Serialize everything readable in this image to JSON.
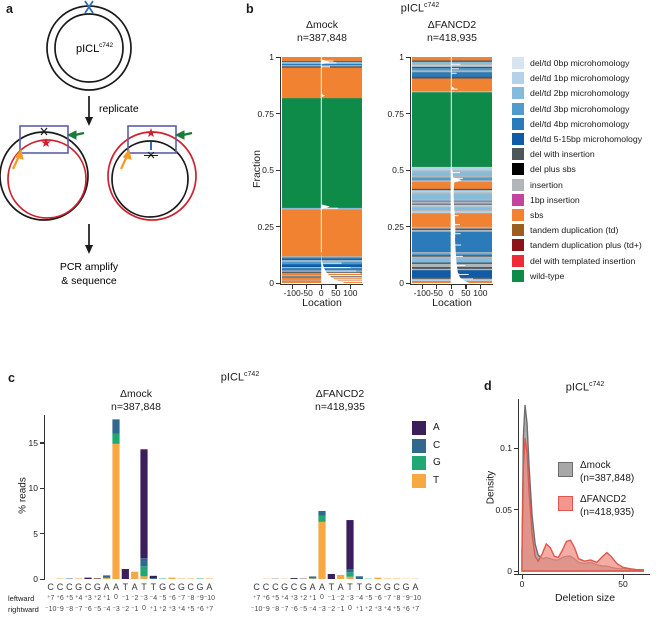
{
  "panels": {
    "a": "a",
    "b": "b",
    "c": "c",
    "d": "d"
  },
  "panel_a": {
    "plasmid_name_base": "pICL",
    "plasmid_name_sup": "c742",
    "step1": "replicate",
    "step2_line1": "PCR amplify",
    "step2_line2": "& sequence"
  },
  "panel_b": {
    "title_base": "pICL",
    "title_sup": "c742",
    "ylabel": "Fraction",
    "xlabel": "Location",
    "yticks": [
      {
        "v": 1,
        "label": "1"
      },
      {
        "v": 0.75,
        "label": "0.75"
      },
      {
        "v": 0.5,
        "label": "0.5"
      },
      {
        "v": 0.25,
        "label": "0.25"
      },
      {
        "v": 0,
        "label": "0"
      }
    ],
    "xticks": [
      {
        "v": -100,
        "label": "-100"
      },
      {
        "v": -50,
        "label": "-50"
      },
      {
        "v": 0,
        "label": "0"
      },
      {
        "v": 50,
        "label": "50"
      },
      {
        "v": 100,
        "label": "100"
      }
    ],
    "subplots": [
      {
        "condition": "Δmock",
        "n_label": "n=387,848"
      },
      {
        "condition": "ΔFANCD2",
        "n_label": "n=418,935"
      }
    ],
    "legend": [
      {
        "label": "del/td 0bp microhomology",
        "key": "mh0"
      },
      {
        "label": "del/td 1bp microhomology",
        "key": "mh1"
      },
      {
        "label": "del/td 2bp microhomology",
        "key": "mh2"
      },
      {
        "label": "del/td 3bp microhomology",
        "key": "mh3"
      },
      {
        "label": "del/td 4bp microhomology",
        "key": "mh4"
      },
      {
        "label": "del/td 5-15bp microhomology",
        "key": "mh5"
      },
      {
        "label": "del with insertion",
        "key": "delins"
      },
      {
        "label": "del plus sbs",
        "key": "delsbs"
      },
      {
        "label": "insertion",
        "key": "ins"
      },
      {
        "label": "1bp insertion",
        "key": "ins1"
      },
      {
        "label": "sbs",
        "key": "sbs"
      },
      {
        "label": "tandem duplication (td)",
        "key": "td"
      },
      {
        "label": "tandem duplication plus (td+)",
        "key": "tdp"
      },
      {
        "label": "del with templated insertion",
        "key": "delti"
      },
      {
        "label": "wild-type",
        "key": "wt"
      }
    ]
  },
  "panel_c": {
    "title_base": "pICL",
    "title_sup": "c742",
    "ylabel": "% reads",
    "yticks": [
      {
        "v": 0,
        "label": "0"
      },
      {
        "v": 5,
        "label": "5"
      },
      {
        "v": 10,
        "label": "10"
      },
      {
        "v": 15,
        "label": "15"
      }
    ],
    "subplots": [
      {
        "condition": "Δmock",
        "n_label": "n=387,848"
      },
      {
        "condition": "ΔFANCD2",
        "n_label": "n=418,935"
      }
    ],
    "legend": [
      {
        "label": "A",
        "color": "#3b1e5c"
      },
      {
        "label": "C",
        "color": "#31688e"
      },
      {
        "label": "G",
        "color": "#1fa875"
      },
      {
        "label": "T",
        "color": "#f7a843"
      }
    ],
    "row_labels": {
      "left": "leftward",
      "right": "rightward"
    },
    "nucleotides": [
      "C",
      "C",
      "C",
      "G",
      "C",
      "G",
      "A",
      "A",
      "T",
      "A",
      "T",
      "T",
      "G",
      "C",
      "G",
      "C",
      "G",
      "A"
    ],
    "leftward": [
      "⁺7",
      "⁺6",
      "⁺5",
      "⁺4",
      "⁺3",
      "⁺2",
      "⁺1",
      "0",
      "⁻1",
      "⁻2",
      "⁻3",
      "⁻4",
      "⁻5",
      "⁻6",
      "⁻7",
      "⁻8",
      "⁻9",
      "⁻10"
    ],
    "rightward": [
      "⁻10",
      "⁻9",
      "⁻8",
      "⁻7",
      "⁻6",
      "⁻5",
      "⁻4",
      "⁻3",
      "⁻2",
      "⁻1",
      "0",
      "⁺1",
      "⁺2",
      "⁺3",
      "⁺4",
      "⁺5",
      "⁺6",
      "⁺7"
    ]
  },
  "panel_d": {
    "title_base": "pICL",
    "title_sup": "c742",
    "ylabel": "Density",
    "xlabel": "Deletion size",
    "yticks": [
      {
        "v": 0,
        "label": "0"
      },
      {
        "v": 0.05,
        "label": "0.05"
      },
      {
        "v": 0.1,
        "label": "0.1"
      }
    ],
    "xticks": [
      {
        "v": 0,
        "label": "0"
      },
      {
        "v": 50,
        "label": "50"
      }
    ],
    "legend": [
      {
        "label": "Δmock",
        "n_label": "(n=387,848)",
        "fill": "#a8a8a8",
        "stroke": "#6e6e6e"
      },
      {
        "label": "ΔFANCD2",
        "n_label": "(n=418,935)",
        "fill": "#f4968e",
        "stroke": "#e0574e"
      }
    ]
  },
  "palette": {
    "mh0": "#d7e5f1",
    "mh1": "#b3d1e8",
    "mh2": "#83bbde",
    "mh3": "#4f9bcd",
    "mh4": "#2b7bba",
    "mh5": "#0f5ba6",
    "delins": "#4e565c",
    "delsbs": "#000000",
    "ins": "#b3b6b9",
    "ins1": "#c2459d",
    "sbs": "#f08232",
    "td": "#9c5e20",
    "tdp": "#8c1418",
    "delti": "#ee2c38",
    "wt": "#0f8b49"
  },
  "chart_data": [
    {
      "id": "b-mock",
      "type": "area",
      "subtype": "stacked-fraction-by-location",
      "title": "Δmock",
      "n": 387848,
      "xlabel": "Location",
      "ylabel": "Fraction",
      "xlim": [
        -135,
        140
      ],
      "ylim": [
        0,
        1
      ],
      "segments": [
        [
          0.012,
          "sbs"
        ],
        [
          0.004,
          "ins"
        ],
        [
          0.01,
          "sbs"
        ],
        [
          0.004,
          "delins"
        ],
        [
          0.006,
          "ins"
        ],
        [
          0.01,
          "sbs"
        ],
        [
          0.005,
          "delins"
        ],
        [
          0.006,
          "ins"
        ],
        [
          0.01,
          "mh4"
        ],
        [
          0.005,
          "ins"
        ],
        [
          0.012,
          "mh5"
        ],
        [
          0.012,
          "mh3"
        ],
        [
          0.006,
          "mh1"
        ],
        [
          0.006,
          "delins"
        ],
        [
          0.006,
          "mh4"
        ],
        [
          0.006,
          "ins"
        ],
        [
          0.016,
          "sbs"
        ],
        [
          0.19,
          "sbs"
        ],
        [
          0.004,
          "ins"
        ],
        [
          0.004,
          "mh2"
        ],
        [
          0.003,
          "delins"
        ],
        [
          0.482,
          "wt"
        ],
        [
          0.135,
          "sbs"
        ],
        [
          0.006,
          "delins"
        ],
        [
          0.005,
          "ins"
        ],
        [
          0.006,
          "mh4"
        ],
        [
          0.004,
          "ins"
        ],
        [
          0.005,
          "mh2"
        ],
        [
          0.004,
          "delins"
        ],
        [
          0.016,
          "sbs"
        ]
      ],
      "wedges": [
        [
          [
            0,
            0.348
          ],
          [
            30,
            0.338
          ],
          [
            0,
            0.326
          ]
        ],
        [
          [
            0,
            0.136
          ],
          [
            2,
            0.1
          ],
          [
            6,
            0.08
          ],
          [
            10,
            0.065
          ],
          [
            16,
            0.05
          ],
          [
            24,
            0.038
          ],
          [
            34,
            0.026
          ],
          [
            48,
            0.015
          ],
          [
            62,
            0.007
          ],
          [
            78,
            0.002
          ],
          [
            78,
            0
          ],
          [
            0,
            0
          ]
        ],
        [
          [
            0,
            0.99
          ],
          [
            16,
            0.984
          ],
          [
            28,
            0.977
          ],
          [
            12,
            0.971
          ],
          [
            0,
            0.969
          ]
        ],
        [
          [
            0,
            0.837
          ],
          [
            13,
            0.829
          ],
          [
            0,
            0.821
          ]
        ]
      ],
      "streaks": [
        [
          0.333,
          58
        ],
        [
          0.09,
          70
        ],
        [
          0.07,
          100
        ],
        [
          0.055,
          120
        ],
        [
          0.045,
          135
        ],
        [
          0.035,
          138
        ],
        [
          0.025,
          140
        ],
        [
          0.016,
          140
        ],
        [
          0.008,
          140
        ],
        [
          0.976,
          52
        ],
        [
          0.984,
          42
        ],
        [
          0.958,
          30
        ]
      ],
      "vline": [
        0.136,
        1.0
      ]
    },
    {
      "id": "b-fancd2",
      "type": "area",
      "subtype": "stacked-fraction-by-location",
      "title": "ΔFANCD2",
      "n": 418935,
      "xlabel": "Location",
      "ylabel": "Fraction",
      "xlim": [
        -135,
        140
      ],
      "ylim": [
        0,
        1
      ],
      "segments": [
        [
          0.01,
          "sbs"
        ],
        [
          0.006,
          "mh1"
        ],
        [
          0.004,
          "ins"
        ],
        [
          0.008,
          "delins"
        ],
        [
          0.03,
          "mh5"
        ],
        [
          0.006,
          "ins"
        ],
        [
          0.008,
          "delins"
        ],
        [
          0.014,
          "ins"
        ],
        [
          0.006,
          "delins"
        ],
        [
          0.018,
          "mh2"
        ],
        [
          0.008,
          "ins"
        ],
        [
          0.006,
          "delins"
        ],
        [
          0.008,
          "mh3"
        ],
        [
          0.006,
          "ins"
        ],
        [
          0.09,
          "mh4"
        ],
        [
          0.008,
          "ins"
        ],
        [
          0.006,
          "delins"
        ],
        [
          0.008,
          "ins"
        ],
        [
          0.06,
          "sbs"
        ],
        [
          0.01,
          "mh1"
        ],
        [
          0.006,
          "ins"
        ],
        [
          0.008,
          "mh2"
        ],
        [
          0.006,
          "ins"
        ],
        [
          0.008,
          "mh1"
        ],
        [
          0.004,
          "delins"
        ],
        [
          0.008,
          "ins"
        ],
        [
          0.006,
          "mh3"
        ],
        [
          0.008,
          "ins"
        ],
        [
          0.02,
          "mh2"
        ],
        [
          0.008,
          "ins"
        ],
        [
          0.01,
          "mh1"
        ],
        [
          0.006,
          "delins"
        ],
        [
          0.03,
          "sbs"
        ],
        [
          0.008,
          "ins"
        ],
        [
          0.012,
          "mh3"
        ],
        [
          0.008,
          "ins"
        ],
        [
          0.015,
          "mh2"
        ],
        [
          0.008,
          "ins"
        ],
        [
          0.016,
          "mh1"
        ],
        [
          0.33,
          "wt"
        ],
        [
          0.006,
          "ins"
        ],
        [
          0.055,
          "sbs"
        ],
        [
          0.008,
          "delins"
        ],
        [
          0.02,
          "mh4"
        ],
        [
          0.008,
          "ins"
        ],
        [
          0.01,
          "mh3"
        ],
        [
          0.006,
          "delins"
        ],
        [
          0.008,
          "mh1"
        ],
        [
          0.006,
          "ins"
        ],
        [
          0.008,
          "mh2"
        ],
        [
          0.006,
          "delins"
        ],
        [
          0.014,
          "sbs"
        ]
      ],
      "wedges": [
        [
          [
            -2,
            0.505
          ],
          [
            -2,
            0
          ],
          [
            62,
            0
          ],
          [
            45,
            0.01
          ],
          [
            30,
            0.025
          ],
          [
            22,
            0.05
          ],
          [
            18,
            0.09
          ],
          [
            15,
            0.14
          ],
          [
            13,
            0.19
          ],
          [
            14,
            0.24
          ],
          [
            12,
            0.3
          ],
          [
            9,
            0.35
          ],
          [
            8,
            0.4
          ],
          [
            10,
            0.44
          ],
          [
            6,
            0.47
          ],
          [
            4,
            0.5
          ]
        ],
        [
          [
            0,
            0.47
          ],
          [
            36,
            0.455
          ],
          [
            0,
            0.44
          ]
        ],
        [
          [
            0,
            0.872
          ],
          [
            11,
            0.862
          ],
          [
            0,
            0.852
          ]
        ]
      ],
      "streaks": [
        [
          0.49,
          30
        ],
        [
          0.465,
          40
        ],
        [
          0.3,
          26
        ],
        [
          0.26,
          30
        ],
        [
          0.22,
          32
        ],
        [
          0.17,
          34
        ],
        [
          0.12,
          40
        ],
        [
          0.08,
          48
        ],
        [
          0.04,
          60
        ],
        [
          0.02,
          75
        ],
        [
          0.95,
          26
        ],
        [
          0.97,
          32
        ],
        [
          0.86,
          22
        ],
        [
          0.93,
          18
        ]
      ],
      "vline": [
        0.505,
        1.0
      ]
    },
    {
      "id": "c-mock",
      "type": "bar",
      "stacked": true,
      "title": "Δmock",
      "n": 387848,
      "ylabel": "% reads",
      "ylim": [
        0,
        18
      ],
      "stack_order": [
        "T",
        "G",
        "C",
        "A"
      ],
      "categories": [
        "C",
        "C",
        "C",
        "G",
        "C",
        "G",
        "A",
        "A",
        "T",
        "A",
        "T",
        "T",
        "G",
        "C",
        "G",
        "C",
        "G",
        "A"
      ],
      "series": {
        "T": [
          0,
          0.05,
          0,
          0.05,
          0,
          0.05,
          0.1,
          14.9,
          0,
          0.8,
          0.3,
          0,
          0,
          0.15,
          0.05,
          0.05,
          0,
          0.05
        ],
        "G": [
          0,
          0,
          0,
          0,
          0,
          0,
          0.05,
          1.1,
          0,
          0,
          1.1,
          0,
          0.05,
          0,
          0,
          0,
          0.05,
          0
        ],
        "C": [
          0,
          0,
          0.05,
          0,
          0,
          0,
          0.25,
          1.6,
          0,
          0,
          0.9,
          0.1,
          0,
          0,
          0,
          0,
          0,
          0
        ],
        "A": [
          0,
          0,
          0,
          0,
          0.15,
          0.05,
          0,
          0,
          1.1,
          0,
          12.0,
          0.25,
          0,
          0,
          0,
          0,
          0,
          0
        ]
      }
    },
    {
      "id": "c-fancd2",
      "type": "bar",
      "stacked": true,
      "title": "ΔFANCD2",
      "n": 418935,
      "ylabel": "% reads",
      "ylim": [
        0,
        18
      ],
      "stack_order": [
        "T",
        "G",
        "C",
        "A"
      ],
      "categories": [
        "C",
        "C",
        "C",
        "G",
        "C",
        "G",
        "A",
        "A",
        "T",
        "A",
        "T",
        "T",
        "G",
        "C",
        "G",
        "C",
        "G",
        "A"
      ],
      "series": {
        "T": [
          0,
          0.03,
          0,
          0.03,
          0,
          0.03,
          0.05,
          6.3,
          0,
          0.45,
          0.25,
          0,
          0,
          0.15,
          0.05,
          0.05,
          0.03,
          0.03
        ],
        "G": [
          0,
          0,
          0,
          0,
          0,
          0,
          0.03,
          0.7,
          0,
          0,
          0.5,
          0,
          0.03,
          0,
          0,
          0,
          0,
          0
        ],
        "C": [
          0,
          0,
          0.03,
          0,
          0,
          0,
          0.2,
          0.5,
          0,
          0,
          0.35,
          0.3,
          0,
          0,
          0,
          0,
          0,
          0
        ],
        "A": [
          0,
          0,
          0,
          0,
          0.1,
          0.03,
          0,
          0,
          0.55,
          0,
          5.4,
          0,
          0,
          0,
          0,
          0,
          0,
          0
        ]
      }
    },
    {
      "id": "d-density",
      "type": "area",
      "title": "pICL c742 deletion size densities",
      "xlabel": "Deletion size",
      "ylabel": "Density",
      "xlim": [
        0,
        62
      ],
      "ylim": [
        0,
        0.14
      ],
      "x": [
        0,
        0.7,
        1.5,
        2.5,
        3.5,
        5,
        6.5,
        8,
        10,
        12,
        14,
        16,
        18,
        20,
        22,
        24,
        26,
        28,
        31,
        34,
        37,
        40,
        42,
        44,
        47,
        50,
        53,
        57,
        60
      ],
      "series": [
        {
          "name": "Δmock",
          "n": 387848,
          "y": [
            0.015,
            0.11,
            0.135,
            0.12,
            0.085,
            0.045,
            0.022,
            0.013,
            0.01,
            0.011,
            0.01,
            0.009,
            0.009,
            0.011,
            0.012,
            0.012,
            0.01,
            0.007,
            0.006,
            0.007,
            0.005,
            0.004,
            0.004,
            0.003,
            0.002,
            0.002,
            0.0015,
            0.001,
            0.001
          ]
        },
        {
          "name": "ΔFANCD2",
          "n": 418935,
          "y": [
            0.012,
            0.085,
            0.108,
            0.096,
            0.065,
            0.03,
            0.012,
            0.008,
            0.014,
            0.022,
            0.019,
            0.012,
            0.011,
            0.017,
            0.024,
            0.025,
            0.019,
            0.01,
            0.008,
            0.009,
            0.007,
            0.012,
            0.015,
            0.012,
            0.006,
            0.003,
            0.002,
            0.001,
            0.001
          ]
        }
      ]
    }
  ]
}
